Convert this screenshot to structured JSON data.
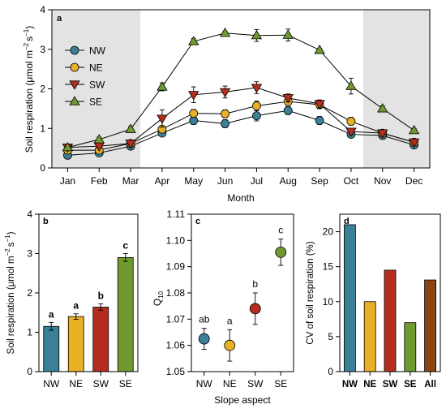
{
  "colors": {
    "NW": "#3b8096",
    "NE": "#e8b024",
    "SW": "#b52d1e",
    "SE": "#6f9a30",
    "shade": "#e3e3e3"
  },
  "chart_data": [
    {
      "panel": "a",
      "type": "line",
      "ylabel_main": "Soil respiration (μmol m",
      "ylabel_sup1": "−2",
      "ylabel_mid": "s",
      "ylabel_sup2": "−1",
      "ylabel_end": ")",
      "xlabel": "Month",
      "categories": [
        "Jan",
        "Feb",
        "Mar",
        "Apr",
        "May",
        "Jun",
        "Jul",
        "Aug",
        "Sep",
        "Oct",
        "Nov",
        "Dec"
      ],
      "ylim": [
        0,
        4
      ],
      "yticks": [
        0,
        1,
        2,
        3,
        4
      ],
      "shaded_months": [
        "Jan",
        "Feb",
        "Mar",
        "Nov",
        "Dec"
      ],
      "legend_position": "top-left",
      "series": [
        {
          "name": "NW",
          "marker": "circle",
          "values": [
            0.32,
            0.38,
            0.55,
            0.88,
            1.2,
            1.12,
            1.32,
            1.45,
            1.2,
            0.85,
            0.82,
            0.58
          ],
          "err": [
            0.04,
            0.05,
            0.05,
            0.06,
            0.1,
            0.1,
            0.13,
            0.1,
            0.1,
            0.06,
            0.05,
            0.04
          ]
        },
        {
          "name": "NE",
          "marker": "circle",
          "values": [
            0.45,
            0.45,
            0.62,
            0.98,
            1.38,
            1.37,
            1.57,
            1.68,
            1.6,
            1.18,
            0.88,
            0.65
          ],
          "err": [
            0.05,
            0.05,
            0.05,
            0.08,
            0.1,
            0.1,
            0.12,
            0.1,
            0.1,
            0.1,
            0.05,
            0.05
          ]
        },
        {
          "name": "SW",
          "marker": "triangle-down",
          "values": [
            0.52,
            0.55,
            0.62,
            1.25,
            1.85,
            1.92,
            2.03,
            1.77,
            1.62,
            0.92,
            0.88,
            0.65
          ],
          "err": [
            0.05,
            0.05,
            0.05,
            0.22,
            0.2,
            0.15,
            0.15,
            0.1,
            0.1,
            0.08,
            0.05,
            0.05
          ]
        },
        {
          "name": "SE",
          "marker": "triangle-up",
          "values": [
            0.52,
            0.72,
            0.98,
            2.05,
            3.2,
            3.41,
            3.35,
            3.36,
            2.98,
            2.07,
            1.5,
            0.95
          ],
          "err": [
            0.05,
            0.06,
            0.07,
            0.1,
            0.07,
            0.04,
            0.15,
            0.15,
            0.04,
            0.2,
            0.07,
            0.05
          ]
        }
      ]
    },
    {
      "panel": "b",
      "type": "bar",
      "ylabel_main": "Soil respiration (μmol m",
      "ylabel_sup1": "−2",
      "ylabel_mid": "s",
      "ylabel_sup2": "−1",
      "ylabel_end": ")",
      "categories": [
        "NW",
        "NE",
        "SW",
        "SE"
      ],
      "values": [
        1.15,
        1.4,
        1.64,
        2.9
      ],
      "err": [
        0.1,
        0.07,
        0.08,
        0.1
      ],
      "letters": [
        "a",
        "a",
        "b",
        "c"
      ],
      "ylim": [
        0,
        4
      ],
      "yticks": [
        0,
        1,
        2,
        3,
        4
      ]
    },
    {
      "panel": "c",
      "type": "scatter",
      "ylabel_main": "Q",
      "ylabel_sub": "10",
      "xlabel": "Slope aspect",
      "categories": [
        "NW",
        "NE",
        "SW",
        "SE"
      ],
      "values": [
        1.0625,
        1.06,
        1.074,
        1.0955
      ],
      "err": [
        0.004,
        0.006,
        0.006,
        0.005
      ],
      "letters": [
        "ab",
        "a",
        "b",
        "c"
      ],
      "ylim": [
        1.05,
        1.11
      ],
      "yticks": [
        "1.05",
        "1.06",
        "1.07",
        "1.08",
        "1.09",
        "1.10",
        "1.11"
      ]
    },
    {
      "panel": "d",
      "type": "bar",
      "ylabel": "CV of soil respiration (%)",
      "categories": [
        "NW",
        "NE",
        "SW",
        "SE",
        "All"
      ],
      "values": [
        21,
        10,
        14.5,
        7,
        13.1
      ],
      "ylim": [
        0,
        22.5
      ],
      "yticks": [
        0,
        5,
        10,
        15,
        20
      ]
    }
  ]
}
